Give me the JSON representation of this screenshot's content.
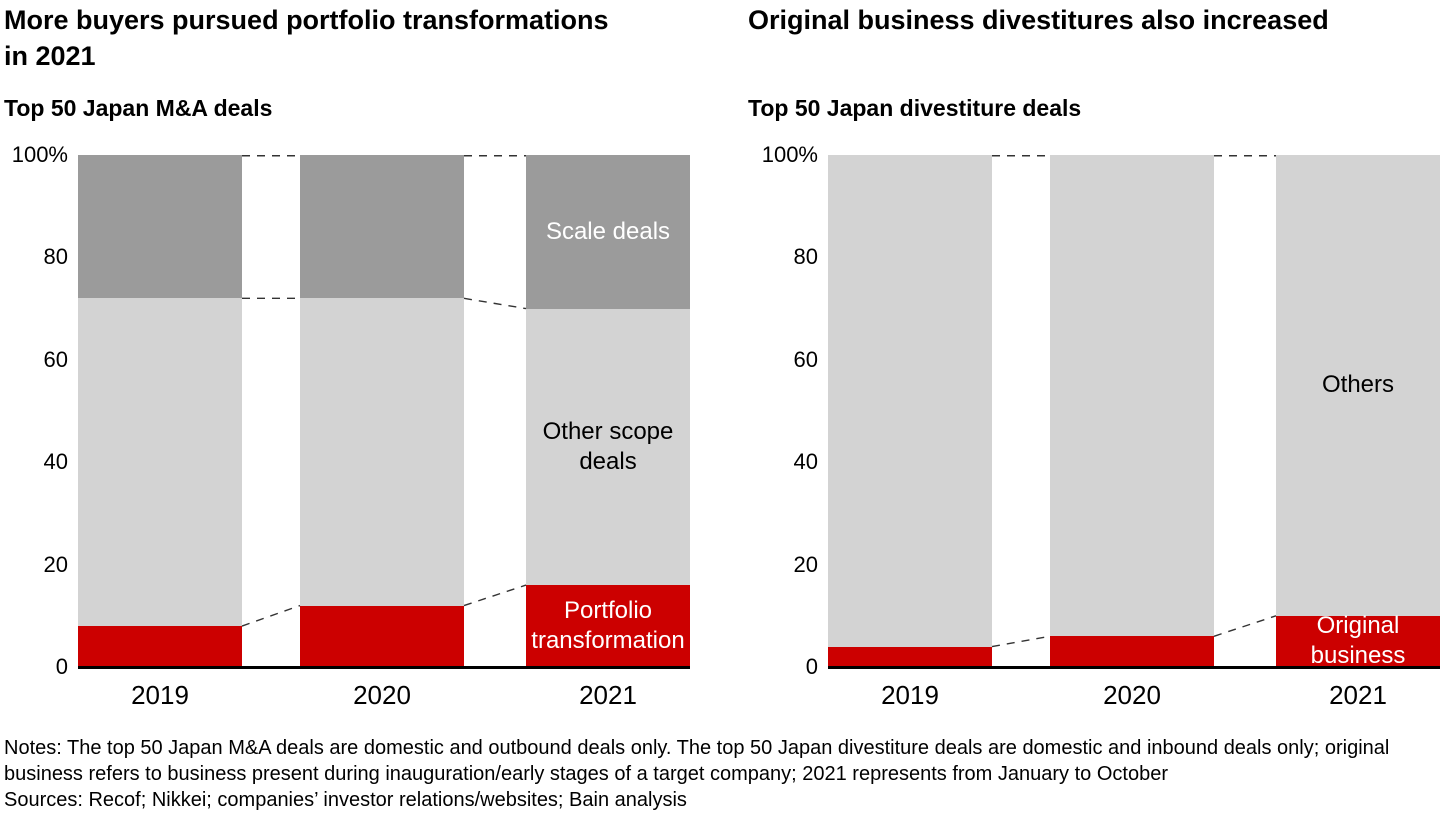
{
  "page": {
    "notes": "Notes: The top 50 Japan M&A deals are domestic and outbound deals only. The top 50 Japan divestiture deals are domestic and inbound deals only; original business refers to business present during inauguration/early stages of a target company; 2021 represents from January to October",
    "sources": "Sources: Recof; Nikkei; companies’ investor relations/websites; Bain analysis"
  },
  "colors": {
    "red": "#cc0000",
    "dark_gray": "#9b9b9b",
    "light_gray": "#d3d3d3",
    "axis": "#000000",
    "connector": "#333333"
  },
  "chart_data": [
    {
      "type": "bar",
      "stacked": true,
      "title": "More buyers pursued portfolio transformations\nin 2021",
      "subtitle": "Top 50 Japan M&A deals",
      "categories": [
        "2019",
        "2020",
        "2021"
      ],
      "series": [
        {
          "name": "Portfolio transformation",
          "label": "Portfolio\ntransformation",
          "label_color": "#ffffff",
          "color_key": "red",
          "values": [
            8,
            12,
            16
          ]
        },
        {
          "name": "Other scope deals",
          "label": "Other scope\ndeals",
          "label_color": "#000000",
          "color_key": "light_gray",
          "values": [
            64,
            60,
            54
          ]
        },
        {
          "name": "Scale deals",
          "label": "Scale deals",
          "label_color": "#ffffff",
          "color_key": "dark_gray",
          "values": [
            28,
            28,
            30
          ]
        }
      ],
      "label_on_category_index": 2,
      "ylim": [
        0,
        100
      ],
      "yticks": [
        {
          "value": 0,
          "label": "0"
        },
        {
          "value": 20,
          "label": "20"
        },
        {
          "value": 40,
          "label": "40"
        },
        {
          "value": 60,
          "label": "60"
        },
        {
          "value": 80,
          "label": "80"
        },
        {
          "value": 100,
          "label": "100%"
        }
      ],
      "grid": false,
      "legend_position": "in-bar",
      "connectors": "dashed-between-bars"
    },
    {
      "type": "bar",
      "stacked": true,
      "title": "Original business divestitures also increased",
      "subtitle": "Top 50 Japan divestiture deals",
      "categories": [
        "2019",
        "2020",
        "2021"
      ],
      "series": [
        {
          "name": "Original business",
          "label": "Original\nbusiness",
          "label_color": "#ffffff",
          "color_key": "red",
          "values": [
            4,
            6,
            10
          ]
        },
        {
          "name": "Others",
          "label": "Others",
          "label_color": "#000000",
          "color_key": "light_gray",
          "values": [
            96,
            94,
            90
          ]
        }
      ],
      "label_on_category_index": 2,
      "ylim": [
        0,
        100
      ],
      "yticks": [
        {
          "value": 0,
          "label": "0"
        },
        {
          "value": 20,
          "label": "20"
        },
        {
          "value": 40,
          "label": "40"
        },
        {
          "value": 60,
          "label": "60"
        },
        {
          "value": 80,
          "label": "80"
        },
        {
          "value": 100,
          "label": "100%"
        }
      ],
      "grid": false,
      "legend_position": "in-bar",
      "connectors": "dashed-between-bars"
    }
  ]
}
